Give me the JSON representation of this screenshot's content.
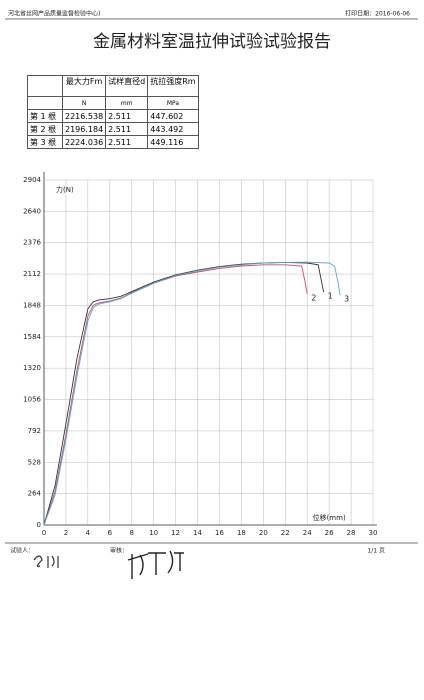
{
  "header": {
    "org": "河北省丝网产品质量监督检验中心)",
    "print_date": "打印日期：2016-06-06",
    "title": "金属材料室温拉伸试验试验报告"
  },
  "table": {
    "head": [
      "",
      "最大力Fm",
      "试样直径d",
      "抗拉强度Rm"
    ],
    "units": [
      "",
      "N",
      "mm",
      "MPa"
    ],
    "rows": [
      [
        "第 1 根",
        "2216.538",
        "2.511",
        "447.602"
      ],
      [
        "第 2 根",
        "2196.184",
        "2.511",
        "443.492"
      ],
      [
        "第 3 根",
        "2224.036",
        "2.511",
        "449.116"
      ]
    ]
  },
  "chart_data": {
    "type": "line",
    "y_label": "力(N)",
    "x_label": "位移(mm)",
    "grid": true,
    "xlim": [
      0,
      30
    ],
    "xticks": [
      0,
      2,
      4,
      6,
      8,
      10,
      12,
      14,
      16,
      18,
      20,
      22,
      24,
      26,
      28,
      30
    ],
    "ylim": [
      0,
      2904
    ],
    "yticks": [
      0,
      264,
      528,
      792,
      1056,
      1320,
      1584,
      1848,
      2112,
      2376,
      2640,
      2904
    ],
    "series": [
      {
        "name": "1",
        "color": "#333333",
        "x": [
          0,
          1,
          2,
          3,
          4,
          4.5,
          5,
          6,
          7,
          8,
          10,
          12,
          14,
          16,
          18,
          20,
          22,
          24,
          25,
          25.3,
          25.5
        ],
        "values": [
          0,
          330,
          850,
          1400,
          1820,
          1880,
          1895,
          1905,
          1925,
          1965,
          2045,
          2105,
          2145,
          2175,
          2195,
          2205,
          2210,
          2205,
          2190,
          2050,
          1960
        ]
      },
      {
        "name": "2",
        "color": "#c0506a",
        "x": [
          0,
          1,
          2,
          3,
          4,
          4.5,
          5,
          6,
          7,
          8,
          10,
          12,
          14,
          16,
          18,
          20,
          22,
          23.5,
          23.8,
          24
        ],
        "values": [
          0,
          280,
          760,
          1300,
          1760,
          1850,
          1870,
          1885,
          1910,
          1955,
          2035,
          2095,
          2130,
          2160,
          2180,
          2190,
          2190,
          2180,
          2050,
          1945
        ]
      },
      {
        "name": "3",
        "color": "#5aa8c8",
        "x": [
          0,
          1,
          2,
          3,
          4,
          4.5,
          5,
          6,
          7,
          8,
          10,
          12,
          14,
          16,
          18,
          20,
          22,
          24,
          26,
          26.5,
          26.8,
          27
        ],
        "values": [
          0,
          250,
          720,
          1250,
          1720,
          1830,
          1860,
          1880,
          1905,
          1950,
          2035,
          2100,
          2140,
          2170,
          2190,
          2205,
          2210,
          2212,
          2205,
          2180,
          2050,
          1935
        ]
      }
    ]
  },
  "footer": {
    "tester": "试验人：",
    "reviewer": "审核：",
    "page": "1/1 页"
  }
}
